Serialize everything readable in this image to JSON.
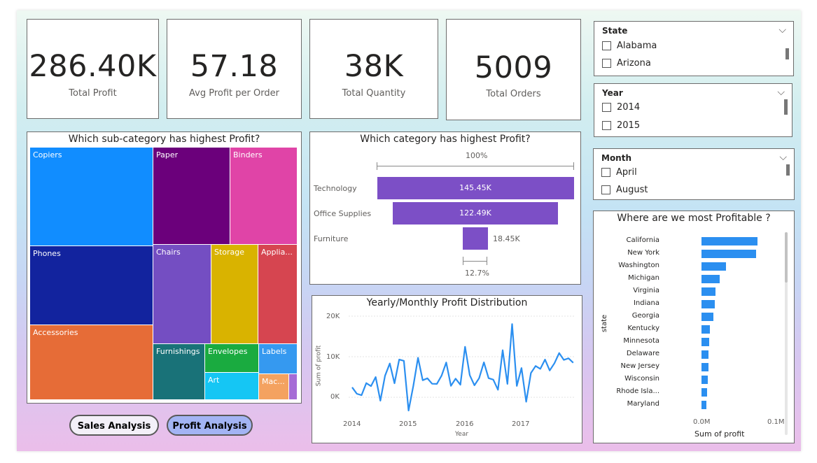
{
  "kpis": [
    {
      "value": "286.40K",
      "label": "Total Profit"
    },
    {
      "value": "57.18",
      "label": "Avg Profit per Order"
    },
    {
      "value": "38K",
      "label": "Total Quantity"
    },
    {
      "value": "5009",
      "label": "Total Orders"
    }
  ],
  "treemap": {
    "title": "Which sub-category has highest Profit?",
    "tiles": [
      {
        "label": "Copiers",
        "color": "#118dff"
      },
      {
        "label": "Phones",
        "color": "#12239e"
      },
      {
        "label": "Accessories",
        "color": "#e66c37"
      },
      {
        "label": "Paper",
        "color": "#6b007b"
      },
      {
        "label": "Binders",
        "color": "#e044a7"
      },
      {
        "label": "Chairs",
        "color": "#744ec2"
      },
      {
        "label": "Storage",
        "color": "#d9b300"
      },
      {
        "label": "Applia...",
        "color": "#d64550"
      },
      {
        "label": "Furnishings",
        "color": "#197278"
      },
      {
        "label": "Envelopes",
        "color": "#1aab40"
      },
      {
        "label": "Labels",
        "color": "#3599f0"
      },
      {
        "label": "Art",
        "color": "#15c6f4"
      },
      {
        "label": "Mac...",
        "color": "#f4a260"
      },
      {
        "label": "",
        "color": "#a66cd6"
      }
    ]
  },
  "funnel": {
    "title": "Which category has highest Profit?",
    "top_pct": "100%",
    "bottom_pct": "12.7%",
    "categories": [
      "Technology",
      "Office Supplies",
      "Furniture"
    ],
    "labels": [
      "145.45K",
      "122.49K",
      "18.45K"
    ],
    "values": [
      145450,
      122490,
      18450
    ]
  },
  "slicers": [
    {
      "title": "State",
      "items": [
        "Alabama",
        "Arizona"
      ]
    },
    {
      "title": "Year",
      "items": [
        "2014",
        "2015"
      ]
    },
    {
      "title": "Month",
      "items": [
        "April",
        "August"
      ]
    }
  ],
  "state_chart": {
    "title": "Where are we most Profitable ?",
    "axis_title": "state",
    "x_axis_title": "Sum of profit",
    "x_ticks": [
      "0.0M",
      "0.1M"
    ],
    "states": [
      "California",
      "New York",
      "Washington",
      "Michigan",
      "Virginia",
      "Indiana",
      "Georgia",
      "Kentucky",
      "Minnesota",
      "Delaware",
      "New Jersey",
      "Wisconsin",
      "Rhode Isla...",
      "Maryland"
    ],
    "values": [
      76381,
      74039,
      33403,
      24463,
      18598,
      18383,
      16250,
      11200,
      10823,
      9977,
      9773,
      8402,
      7286,
      7031
    ]
  },
  "line_chart": {
    "title": "Yearly/Monthly Profit Distribution",
    "y_ticks": [
      "20K",
      "10K",
      "0K"
    ],
    "x_ticks": [
      "2014",
      "2015",
      "2016",
      "2017"
    ],
    "x_title": "Year",
    "y_title": "Sum of profit"
  },
  "chart_data": {
    "type": "line",
    "title": "Yearly/Monthly Profit Distribution",
    "xlabel": "Year",
    "ylabel": "Sum of profit",
    "ylim": [
      -3000,
      21000
    ],
    "x": [
      "2014-01",
      "2014-02",
      "2014-03",
      "2014-04",
      "2014-05",
      "2014-06",
      "2014-07",
      "2014-08",
      "2014-09",
      "2014-10",
      "2014-11",
      "2014-12",
      "2015-01",
      "2015-02",
      "2015-03",
      "2015-04",
      "2015-05",
      "2015-06",
      "2015-07",
      "2015-08",
      "2015-09",
      "2015-10",
      "2015-11",
      "2015-12",
      "2016-01",
      "2016-02",
      "2016-03",
      "2016-04",
      "2016-05",
      "2016-06",
      "2016-07",
      "2016-08",
      "2016-09",
      "2016-10",
      "2016-11",
      "2016-12",
      "2017-01",
      "2017-02",
      "2017-03",
      "2017-04",
      "2017-05",
      "2017-06",
      "2017-07",
      "2017-08",
      "2017-09",
      "2017-10",
      "2017-11",
      "2017-12"
    ],
    "series": [
      {
        "name": "Sum of profit",
        "values": [
          2450,
          862,
          499,
          3489,
          2739,
          4977,
          -841,
          5318,
          8328,
          3448,
          9292,
          8983,
          -3281,
          2814,
          9732,
          4188,
          4668,
          3335,
          3289,
          5317,
          8576,
          2818,
          4584,
          3090,
          12451,
          5450,
          2956,
          4712,
          8600,
          4700,
          4350,
          1850,
          11600,
          3300,
          18050,
          2800,
          7200,
          -1100,
          6000,
          7700,
          7000,
          9300,
          6600,
          8400,
          10900,
          9200,
          9600,
          8500
        ]
      }
    ]
  },
  "buttons": [
    {
      "label": "Sales Analysis",
      "color": "#f3f0f8"
    },
    {
      "label": "Profit Analysis",
      "color": "#a3b4f4"
    }
  ]
}
